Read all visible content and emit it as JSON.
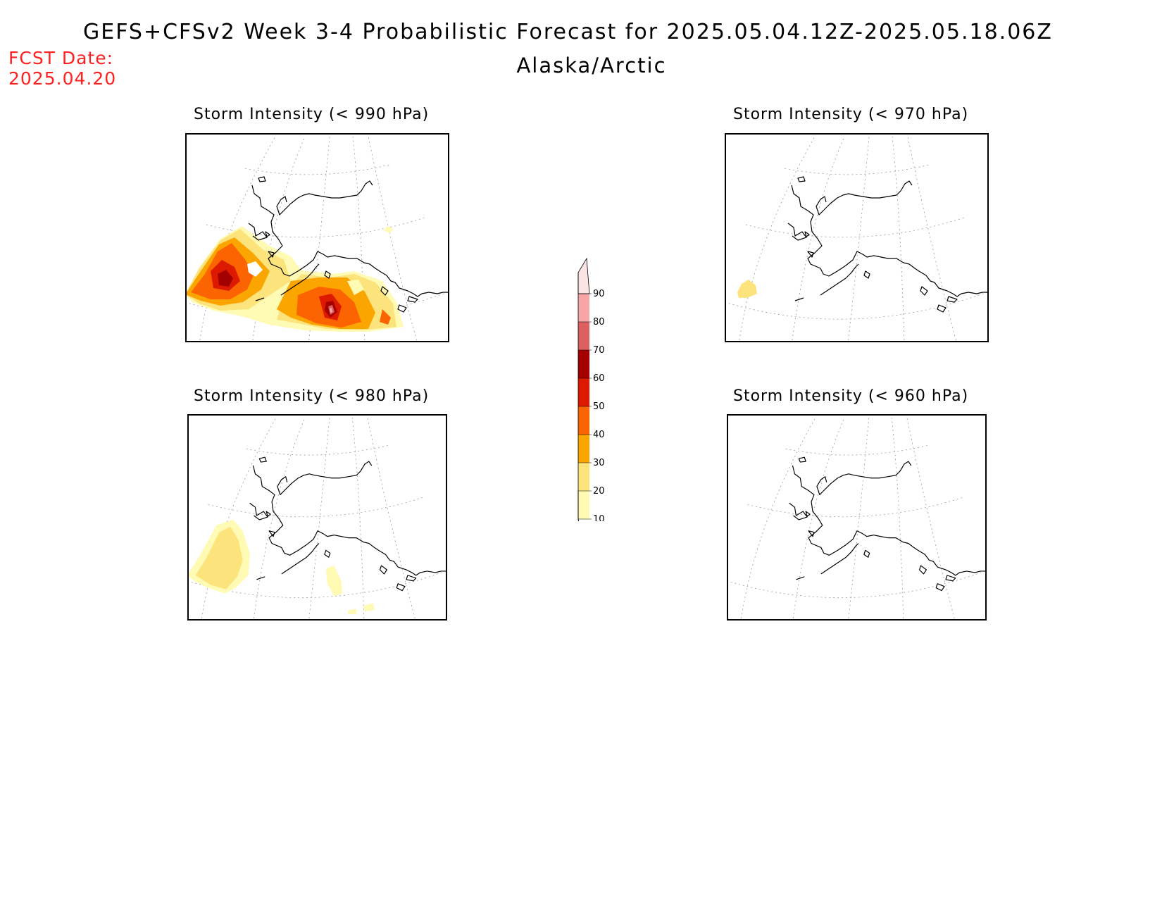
{
  "title": "GEFS+CFSv2 Week 3-4 Probabilistic Forecast for 2025.05.04.12Z-2025.05.18.06Z",
  "region": "Alaska/Arctic",
  "fcst_date_label": "FCST Date:",
  "fcst_date_value": "2025.04.20",
  "panels": [
    {
      "title": "Storm Intensity (< 990 hPa)",
      "coverage": "extensive"
    },
    {
      "title": "Storm Intensity (< 970 hPa)",
      "coverage": "minimal"
    },
    {
      "title": "Storm Intensity (< 980 hPa)",
      "coverage": "low"
    },
    {
      "title": "Storm Intensity (< 960 hPa)",
      "coverage": "none"
    }
  ],
  "colorbar": {
    "levels": [
      "10",
      "20",
      "30",
      "40",
      "50",
      "60",
      "70",
      "80",
      "90"
    ],
    "colors": [
      "#fffab4",
      "#fde37c",
      "#fba500",
      "#fb6400",
      "#dd1a00",
      "#a50000",
      "#dd6060",
      "#f6a6a6",
      "#fde4e4"
    ]
  },
  "colors": {
    "fcst_date": "#ff2020",
    "coastline": "#000000",
    "grid": "#999999"
  }
}
